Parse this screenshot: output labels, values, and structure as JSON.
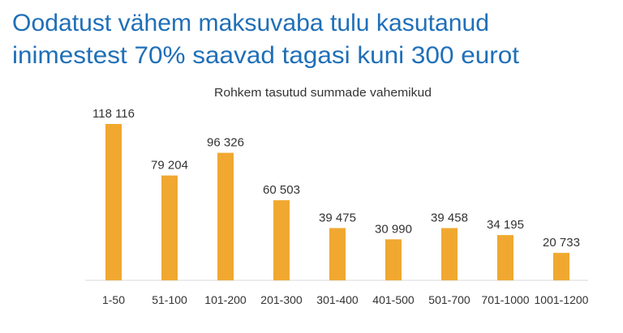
{
  "chart_data": {
    "type": "bar",
    "title": [
      "Oodatust vähem maksuvaba tulu kasutanud",
      "inimestest 70% saavad tagasi kuni 300 eurot"
    ],
    "subtitle": "Rohkem tasutud summade vahemikud",
    "categories": [
      "1-50",
      "51-100",
      "101-200",
      "201-300",
      "301-400",
      "401-500",
      "501-700",
      "701-1000",
      "1001-1200"
    ],
    "values": [
      118116,
      79204,
      96326,
      60503,
      39475,
      30990,
      39458,
      34195,
      20733
    ],
    "value_labels": [
      "118 116",
      "79 204",
      "96 326",
      "60 503",
      "39 475",
      "30 990",
      "39 458",
      "34 195",
      "20 733"
    ],
    "color": "#f0a830"
  }
}
